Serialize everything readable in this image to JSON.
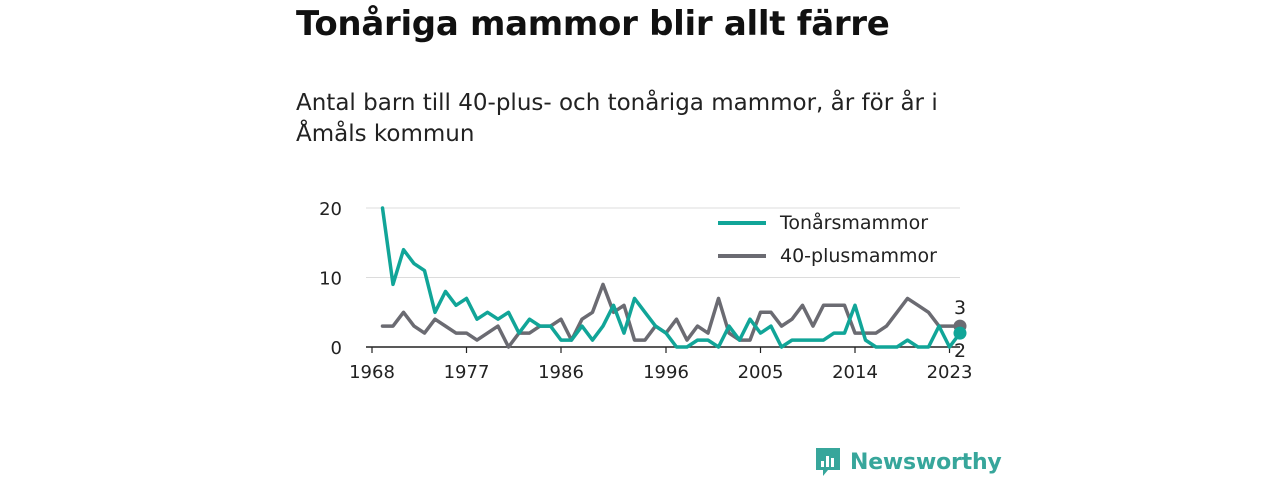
{
  "title": "Tonåriga mammor blir allt färre",
  "subtitle": "Antal barn till 40-plus- och tonåriga mammor, år för år i Åmåls kommun",
  "brand": {
    "name": "Newsworthy",
    "color": "#37a69b"
  },
  "chart_data": {
    "type": "line",
    "x": [
      1968,
      1969,
      1970,
      1971,
      1972,
      1973,
      1974,
      1975,
      1976,
      1977,
      1978,
      1979,
      1980,
      1981,
      1982,
      1983,
      1984,
      1985,
      1986,
      1987,
      1988,
      1989,
      1990,
      1991,
      1992,
      1993,
      1994,
      1995,
      1996,
      1997,
      1998,
      1999,
      2000,
      2001,
      2002,
      2003,
      2004,
      2005,
      2006,
      2007,
      2008,
      2009,
      2010,
      2011,
      2012,
      2013,
      2014,
      2015,
      2016,
      2017,
      2018,
      2019,
      2020,
      2021,
      2022,
      2023,
      2024
    ],
    "series": [
      {
        "name": "Tonårsmammor",
        "color": "#11a598",
        "values": [
          null,
          20,
          9,
          14,
          12,
          11,
          5,
          8,
          6,
          7,
          4,
          5,
          4,
          5,
          2,
          4,
          3,
          3,
          1,
          1,
          3,
          1,
          3,
          6,
          2,
          7,
          5,
          3,
          2,
          0,
          0,
          1,
          1,
          0,
          3,
          1,
          4,
          2,
          3,
          0,
          1,
          1,
          1,
          1,
          2,
          2,
          6,
          1,
          0,
          0,
          0,
          1,
          0,
          0,
          3,
          0,
          2
        ]
      },
      {
        "name": "40-plusmammor",
        "color": "#6b6b72",
        "values": [
          null,
          3,
          3,
          5,
          3,
          2,
          4,
          3,
          2,
          2,
          1,
          2,
          3,
          0,
          2,
          2,
          3,
          3,
          4,
          1,
          4,
          5,
          9,
          5,
          6,
          1,
          1,
          3,
          2,
          4,
          1,
          3,
          2,
          7,
          2,
          1,
          1,
          5,
          5,
          3,
          4,
          6,
          3,
          6,
          6,
          6,
          2,
          2,
          2,
          3,
          5,
          7,
          6,
          5,
          3,
          3,
          3
        ]
      }
    ],
    "xticks": [
      1968,
      1977,
      1986,
      1996,
      2005,
      2014,
      2023
    ],
    "yticks": [
      0,
      10,
      20
    ],
    "ylim": [
      0,
      20
    ],
    "xlim": [
      1968,
      2024
    ],
    "grid": true,
    "legend": "top-right",
    "end_labels": [
      "3",
      "2"
    ]
  }
}
